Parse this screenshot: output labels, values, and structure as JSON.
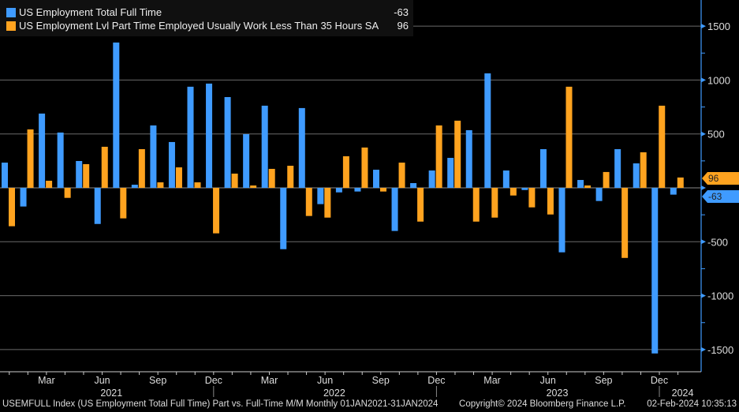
{
  "chart_data": {
    "type": "bar",
    "title": "",
    "frequency": "Monthly",
    "categories": [
      "Jan 2021",
      "Feb 2021",
      "Mar 2021",
      "Apr 2021",
      "May 2021",
      "Jun 2021",
      "Jul 2021",
      "Aug 2021",
      "Sep 2021",
      "Oct 2021",
      "Nov 2021",
      "Dec 2021",
      "Jan 2022",
      "Feb 2022",
      "Mar 2022",
      "Apr 2022",
      "May 2022",
      "Jun 2022",
      "Jul 2022",
      "Aug 2022",
      "Sep 2022",
      "Oct 2022",
      "Nov 2022",
      "Dec 2022",
      "Jan 2023",
      "Feb 2023",
      "Mar 2023",
      "Apr 2023",
      "May 2023",
      "Jun 2023",
      "Jul 2023",
      "Aug 2023",
      "Sep 2023",
      "Oct 2023",
      "Nov 2023",
      "Dec 2023",
      "Jan 2024"
    ],
    "series": [
      {
        "name": "US Employment Total Full Time",
        "last_value": "-63",
        "color": "#3f9bff",
        "values": [
          234,
          -173,
          689,
          513,
          249,
          -335,
          1348,
          29,
          579,
          425,
          938,
          967,
          842,
          498,
          762,
          -569,
          740,
          -151,
          -42,
          -34,
          168,
          -400,
          44,
          161,
          278,
          535,
          1062,
          161,
          -20,
          359,
          -598,
          73,
          -122,
          359,
          227,
          -1536,
          -63
        ]
      },
      {
        "name": "US Employment Lvl Part Time Employed Usually Work Less Than 35 Hours SA",
        "last_value": "96",
        "color": "#ffa31f",
        "values": [
          -356,
          542,
          66,
          -93,
          220,
          381,
          -283,
          359,
          51,
          190,
          51,
          -422,
          132,
          22,
          176,
          205,
          -261,
          -276,
          293,
          374,
          -34,
          234,
          -313,
          579,
          623,
          -313,
          -276,
          -71,
          -181,
          -247,
          938,
          22,
          147,
          -650,
          330,
          762,
          96
        ]
      }
    ],
    "ylim": [
      -1700,
      1750
    ],
    "yticks": [
      1500,
      1000,
      500,
      0,
      -500,
      -1000,
      -1500
    ],
    "ytick_labels": [
      "1500",
      "1000",
      "500",
      "",
      "-500",
      "-1000",
      "-1500"
    ],
    "xtick_labels": [
      {
        "label": "Mar",
        "index": 2
      },
      {
        "label": "Jun",
        "index": 5
      },
      {
        "label": "Sep",
        "index": 8
      },
      {
        "label": "Dec",
        "index": 11
      },
      {
        "label": "Mar",
        "index": 14
      },
      {
        "label": "Jun",
        "index": 17
      },
      {
        "label": "Sep",
        "index": 20
      },
      {
        "label": "Dec",
        "index": 23
      },
      {
        "label": "Mar",
        "index": 26
      },
      {
        "label": "Jun",
        "index": 29
      },
      {
        "label": "Sep",
        "index": 32
      },
      {
        "label": "Dec",
        "index": 35
      }
    ],
    "year_labels": [
      {
        "label": "2021",
        "from": 0,
        "to": 11
      },
      {
        "label": "2022",
        "from": 12,
        "to": 23
      },
      {
        "label": "2023",
        "from": 24,
        "to": 35
      },
      {
        "label": "2024",
        "from": 36,
        "to": 36
      }
    ],
    "grid": true,
    "legend": "top-left"
  },
  "footer": {
    "left": "USEMFULL Index (US Employment Total Full Time) Part vs. Full-Time M/M  Monthly 01JAN2021-31JAN2024",
    "center": "Copyright© 2024 Bloomberg Finance L.P.",
    "right": "02-Feb-2024 10:35:13"
  }
}
